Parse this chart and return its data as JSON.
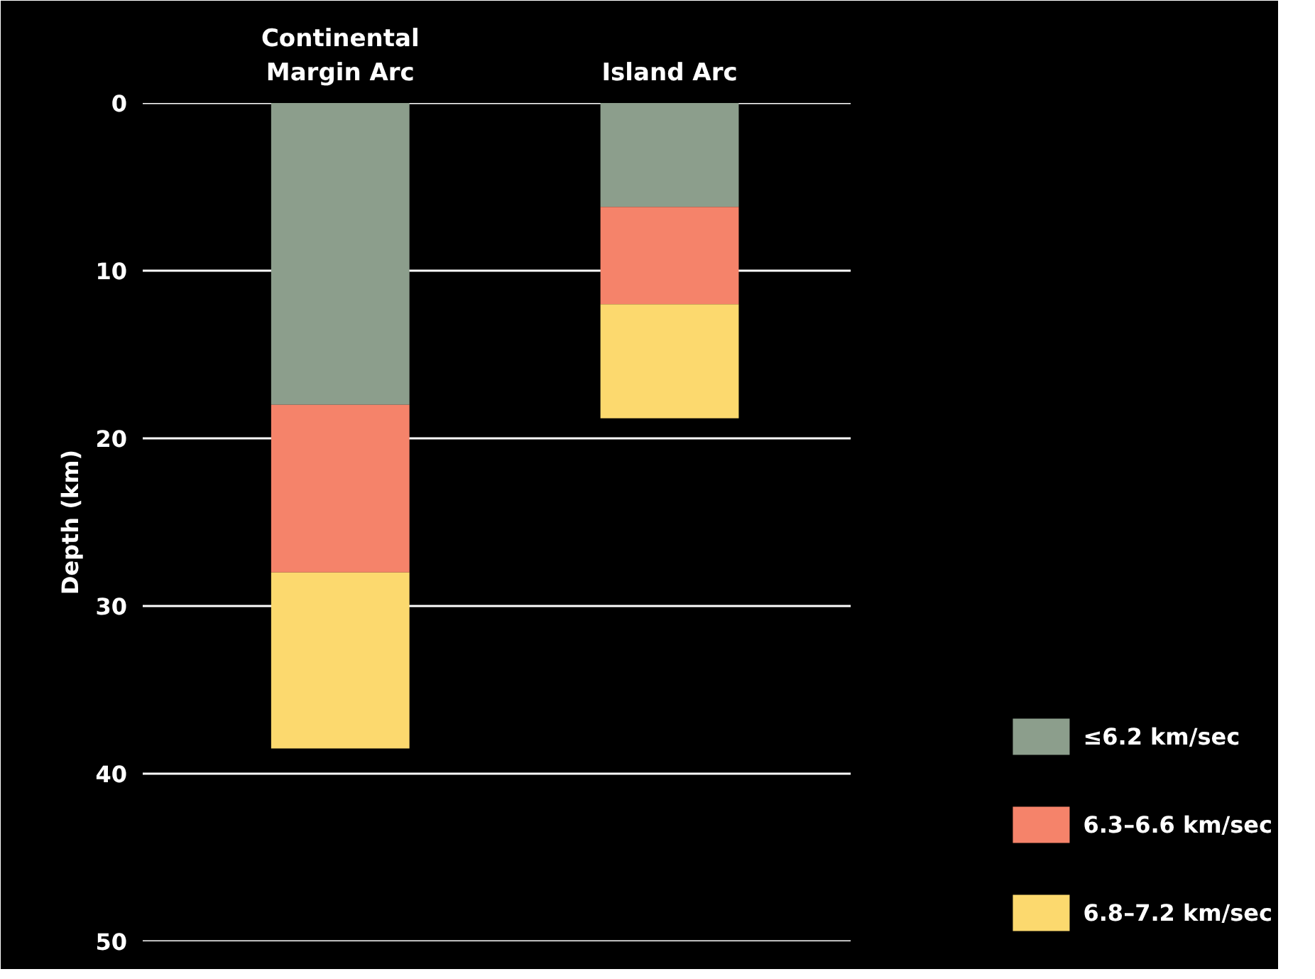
{
  "chart_data": {
    "type": "bar",
    "stacked": true,
    "categories": [
      "Continental Margin Arc",
      "Island Arc"
    ],
    "ylabel": "Depth (km)",
    "ylim": [
      50,
      0
    ],
    "yticks": [
      0,
      10,
      20,
      30,
      40,
      50
    ],
    "grid": "y",
    "legend": "bottom right",
    "series": [
      {
        "name": "≤6.2 km/sec",
        "color": "#8c9e8c",
        "values": [
          18,
          6.2
        ]
      },
      {
        "name": "6.3–6.6 km/sec",
        "color": "#f5836a",
        "values": [
          10,
          5.8
        ]
      },
      {
        "name": "6.8–7.2 km/sec",
        "color": "#fcd96e",
        "values": [
          10.5,
          6.8
        ]
      }
    ]
  }
}
